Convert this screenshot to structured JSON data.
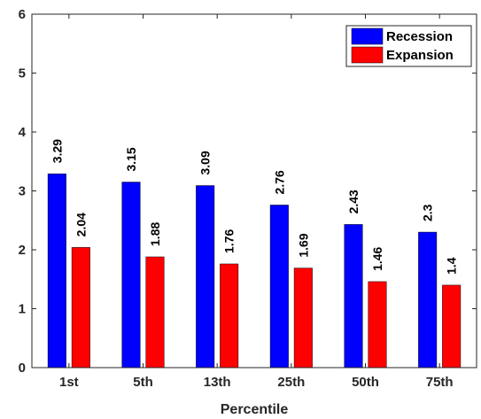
{
  "chart_data": {
    "type": "bar",
    "categories": [
      "1st",
      "5th",
      "13th",
      "25th",
      "50th",
      "75th"
    ],
    "series": [
      {
        "name": "Recession",
        "values": [
          3.29,
          3.15,
          3.09,
          2.76,
          2.43,
          2.3
        ],
        "value_labels": [
          "3.29",
          "3.15",
          "3.09",
          "2.76",
          "2.43",
          "2.3"
        ],
        "color": "#0000ff"
      },
      {
        "name": "Expansion",
        "values": [
          2.04,
          1.88,
          1.76,
          1.69,
          1.46,
          1.4
        ],
        "value_labels": [
          "2.04",
          "1.88",
          "1.76",
          "1.69",
          "1.46",
          "1.4"
        ],
        "color": "#ff0000"
      }
    ],
    "xlabel": "Percentile",
    "ylabel": "",
    "ylim": [
      0,
      6
    ],
    "yticks": [
      "0",
      "1",
      "2",
      "3",
      "4",
      "5",
      "6"
    ],
    "grid": false,
    "legend_position": "top-right"
  }
}
